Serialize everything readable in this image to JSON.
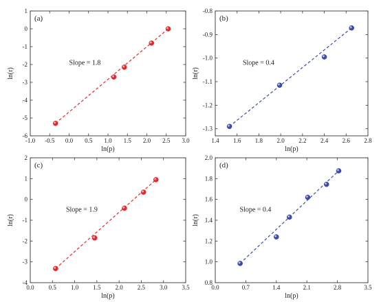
{
  "chart_data": [
    {
      "panel": "(a)",
      "type": "scatter",
      "xlabel": "ln(p)",
      "ylabel": "ln(r)",
      "xlim": [
        -1.0,
        3.0
      ],
      "ylim": [
        -6,
        1
      ],
      "xticks": [
        "-1.0",
        "-0.5",
        "0.0",
        "0.5",
        "1.0",
        "1.5",
        "2.0",
        "2.5",
        "3.0"
      ],
      "yticks": [
        "-6",
        "-5",
        "-4",
        "-3",
        "-2",
        "-1",
        "0",
        "1"
      ],
      "annotation": "Slope = 1.8",
      "color": "#e8262a",
      "points": [
        {
          "x": -0.35,
          "y": -5.3
        },
        {
          "x": 1.15,
          "y": -2.7
        },
        {
          "x": 1.42,
          "y": -2.15
        },
        {
          "x": 2.12,
          "y": -0.8
        },
        {
          "x": 2.55,
          "y": 0.0
        }
      ],
      "fit": [
        [
          -0.35,
          -5.3
        ],
        [
          2.55,
          0.0
        ]
      ]
    },
    {
      "panel": "(b)",
      "type": "scatter",
      "xlabel": "ln(p)",
      "ylabel": "ln(r)",
      "xlim": [
        1.4,
        2.8
      ],
      "ylim": [
        -1.33,
        -0.8
      ],
      "xticks": [
        "1.4",
        "1.6",
        "1.8",
        "2.0",
        "2.2",
        "2.4",
        "2.6",
        "2.8"
      ],
      "yticks": [
        "-1.3",
        "-1.2",
        "-1.1",
        "-1.0",
        "-0.9",
        "-0.8"
      ],
      "annotation": "Slope = 0.4",
      "color": "#3b4aa8",
      "points": [
        {
          "x": 1.53,
          "y": -1.29
        },
        {
          "x": 1.99,
          "y": -1.115
        },
        {
          "x": 2.4,
          "y": -0.995
        },
        {
          "x": 2.65,
          "y": -0.872
        }
      ],
      "fit": [
        [
          1.53,
          -1.29
        ],
        [
          2.65,
          -0.872
        ]
      ]
    },
    {
      "panel": "(c)",
      "type": "scatter",
      "xlabel": "ln(p)",
      "ylabel": "ln(r)",
      "xlim": [
        0.0,
        3.5
      ],
      "ylim": [
        -4,
        2
      ],
      "xticks": [
        "0.0",
        "0.5",
        "1.0",
        "1.5",
        "2.0",
        "2.5",
        "3.0",
        "3.5"
      ],
      "yticks": [
        "-4",
        "-3",
        "-2",
        "-1",
        "0",
        "1",
        "2"
      ],
      "annotation": "Slope = 1.9",
      "color": "#e8262a",
      "points": [
        {
          "x": 0.57,
          "y": -3.32
        },
        {
          "x": 1.45,
          "y": -1.85
        },
        {
          "x": 2.12,
          "y": -0.42
        },
        {
          "x": 2.55,
          "y": 0.35
        },
        {
          "x": 2.83,
          "y": 0.95
        }
      ],
      "fit": [
        [
          0.57,
          -3.32
        ],
        [
          2.83,
          0.95
        ]
      ]
    },
    {
      "panel": "(d)",
      "type": "scatter",
      "xlabel": "ln(p)",
      "ylabel": "ln(r)",
      "xlim": [
        0.0,
        3.5
      ],
      "ylim": [
        0.8,
        2.0
      ],
      "xticks": [
        "0.0",
        "0.7",
        "1.4",
        "2.1",
        "2.8",
        "3.5"
      ],
      "yticks": [
        "0.8",
        "1.0",
        "1.2",
        "1.4",
        "1.6",
        "1.8",
        "2.0"
      ],
      "annotation": "Slope = 0.4",
      "color": "#3b4aa8",
      "points": [
        {
          "x": 0.57,
          "y": 0.985
        },
        {
          "x": 1.4,
          "y": 1.24
        },
        {
          "x": 1.7,
          "y": 1.43
        },
        {
          "x": 2.12,
          "y": 1.62
        },
        {
          "x": 2.55,
          "y": 1.745
        },
        {
          "x": 2.83,
          "y": 1.875
        }
      ],
      "fit": [
        [
          0.57,
          0.985
        ],
        [
          2.83,
          1.875
        ]
      ]
    }
  ]
}
